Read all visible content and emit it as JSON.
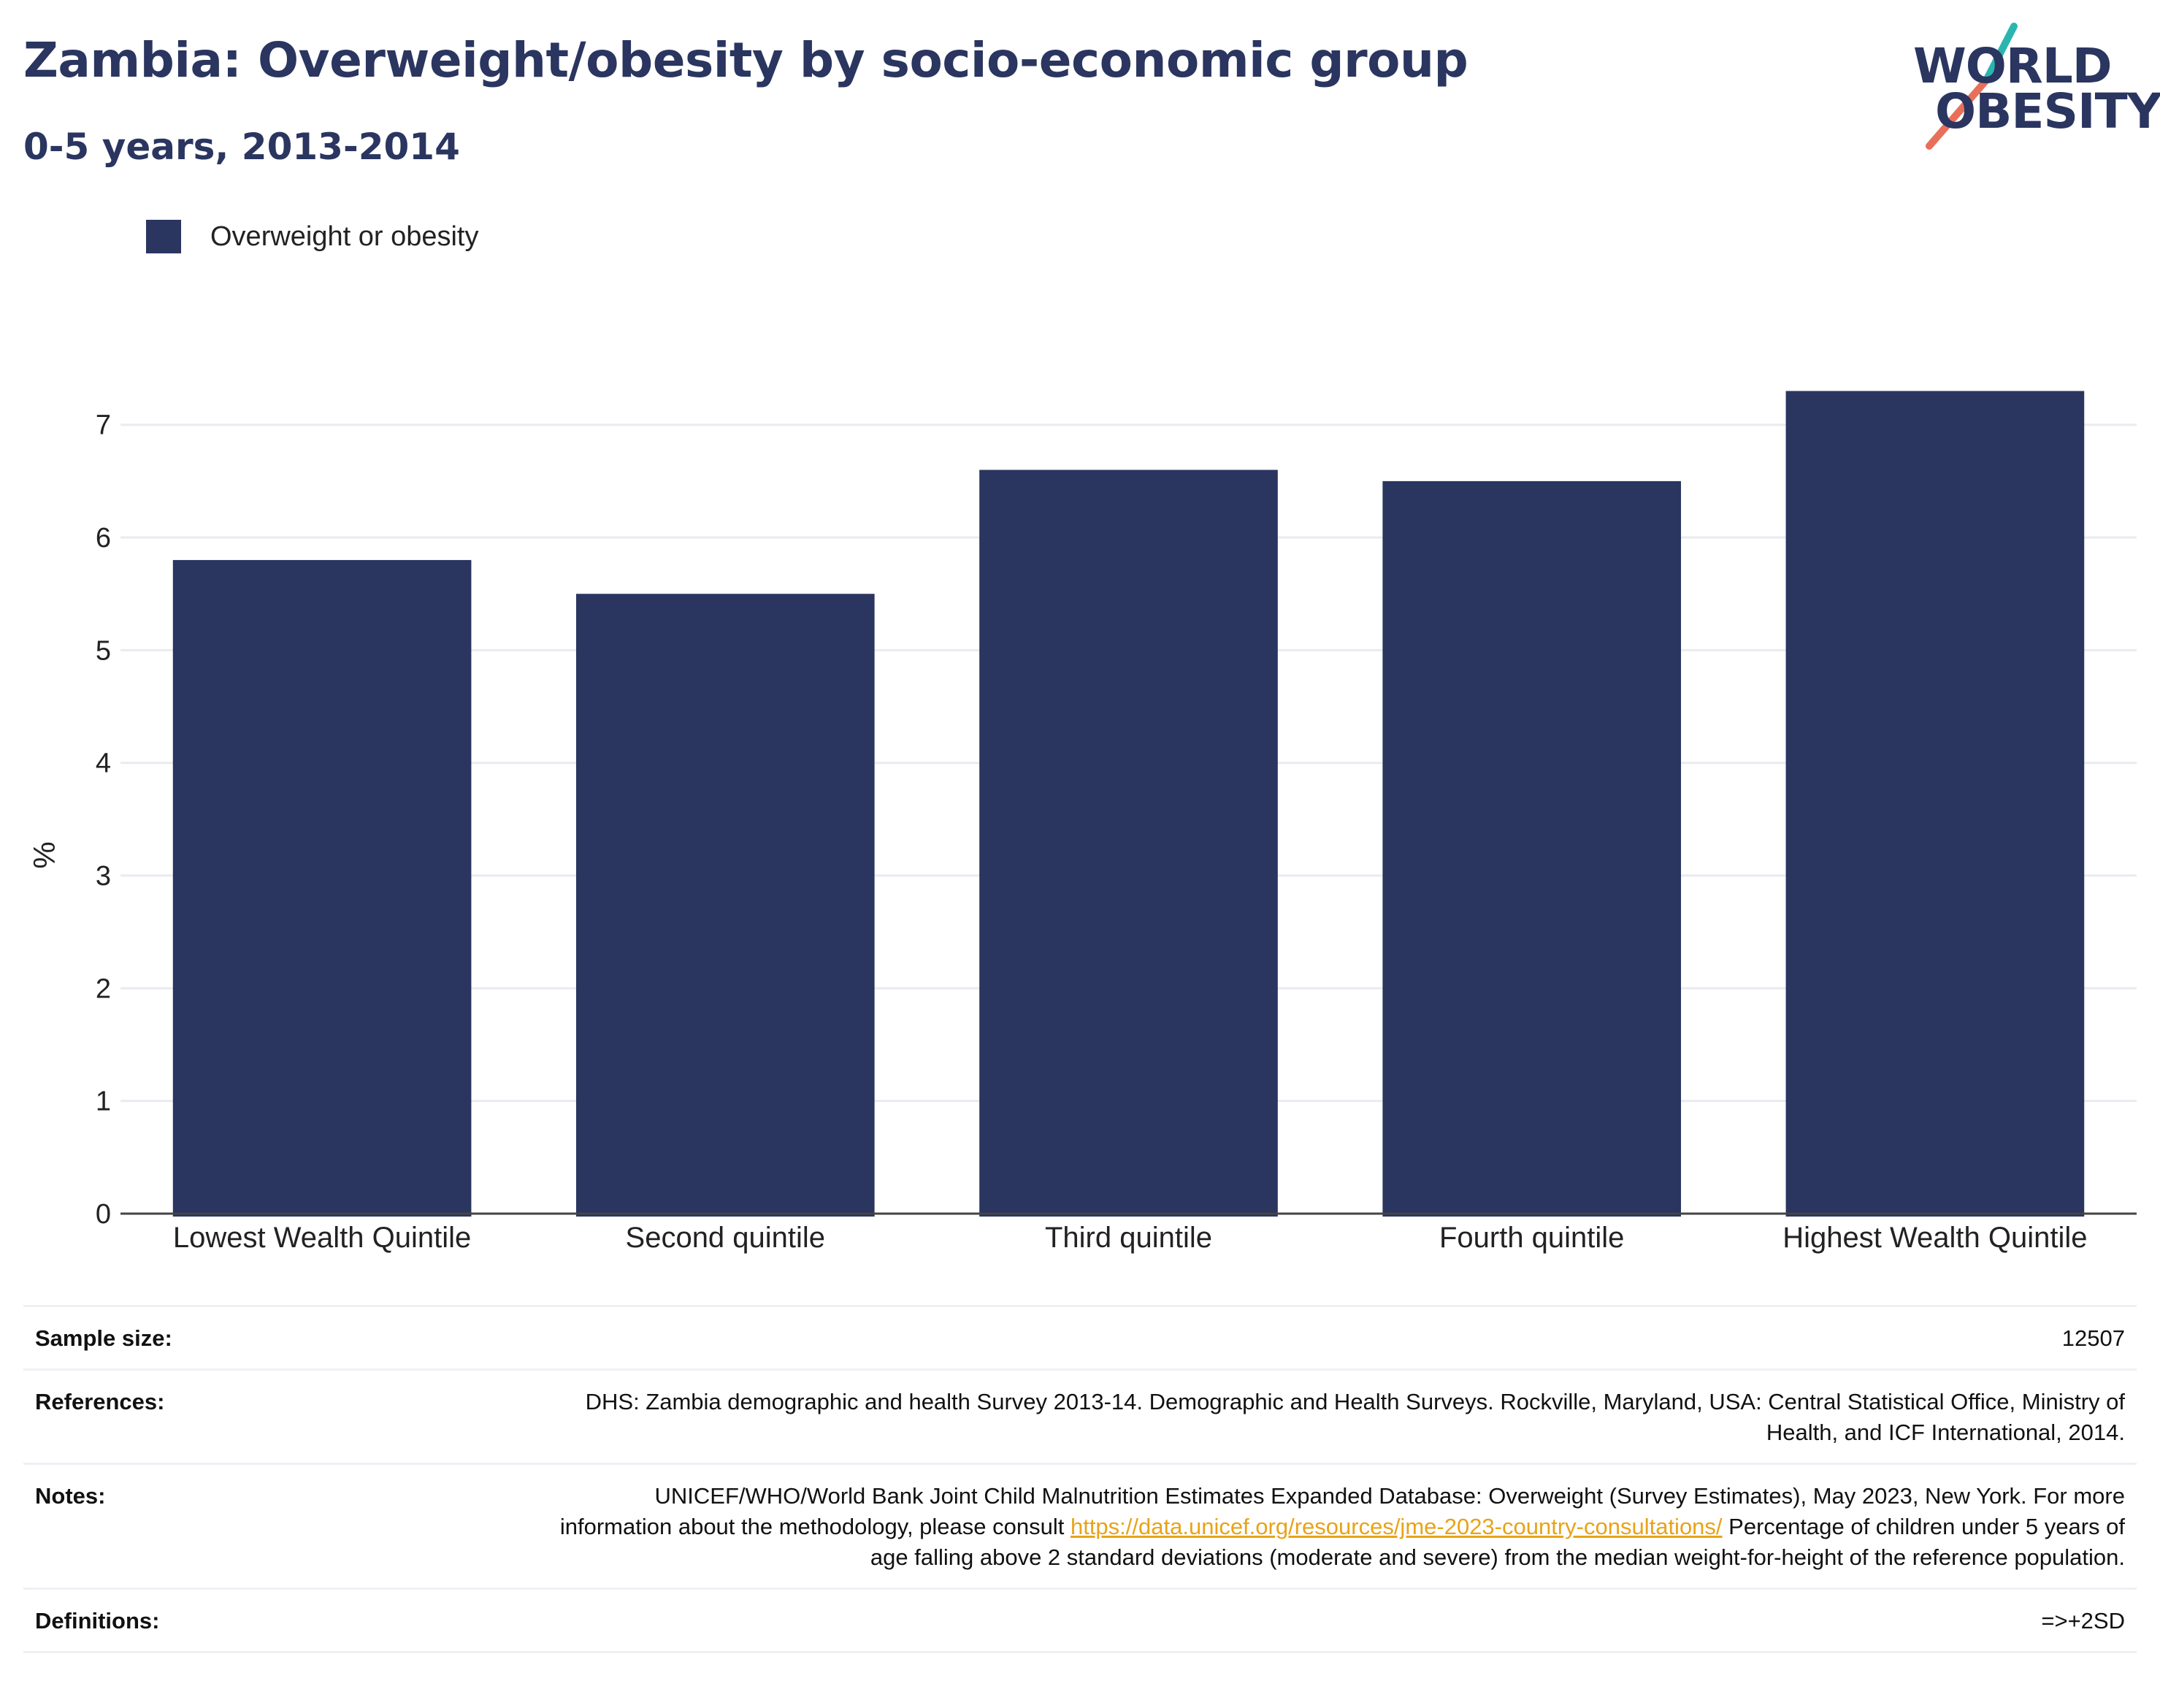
{
  "header": {
    "title": "Zambia: Overweight/obesity by socio-economic group",
    "subtitle": "0-5 years, 2013-2014"
  },
  "logo": {
    "line1": "WORLD",
    "line2": "OBESITY",
    "colors": {
      "text": "#2a3560",
      "slash_top": "#2bb5b0",
      "slash_bottom": "#e8705a"
    }
  },
  "colors": {
    "bar": "#2a3560",
    "grid": "#e9ebf0",
    "axis": "#444444",
    "link": "#e8a317"
  },
  "chart_data": {
    "type": "bar",
    "categories": [
      "Lowest Wealth Quintile",
      "Second quintile",
      "Third quintile",
      "Fourth quintile",
      "Highest Wealth Quintile"
    ],
    "series": [
      {
        "name": "Overweight or obesity",
        "values": [
          5.8,
          5.5,
          6.6,
          6.5,
          7.3
        ]
      }
    ],
    "title": "",
    "xlabel": "",
    "ylabel": "%",
    "ylim": [
      0,
      7.4
    ],
    "yticks": [
      0,
      1,
      2,
      3,
      4,
      5,
      6,
      7
    ],
    "grid": true,
    "legend_position": "top-left"
  },
  "meta": {
    "sample_size_label": "Sample size:",
    "sample_size_value": "12507",
    "references_label": "References:",
    "references_value": "DHS: Zambia demographic and health Survey 2013-14. Demographic and Health Surveys. Rockville, Maryland, USA: Central Statistical Office, Ministry of Health, and ICF International, 2014.",
    "notes_label": "Notes:",
    "notes_value_before": "UNICEF/WHO/World Bank Joint Child Malnutrition Estimates Expanded Database: Overweight (Survey Estimates), May 2023, New York. For more information about the methodology, please consult ",
    "notes_link": "https://data.unicef.org/resources/jme-2023-country-consultations/",
    "notes_value_after": " Percentage of children under 5 years of age falling above 2 standard deviations (moderate and severe) from the median weight-for-height of the reference population.",
    "definitions_label": "Definitions:",
    "definitions_value": "=>+2SD"
  }
}
